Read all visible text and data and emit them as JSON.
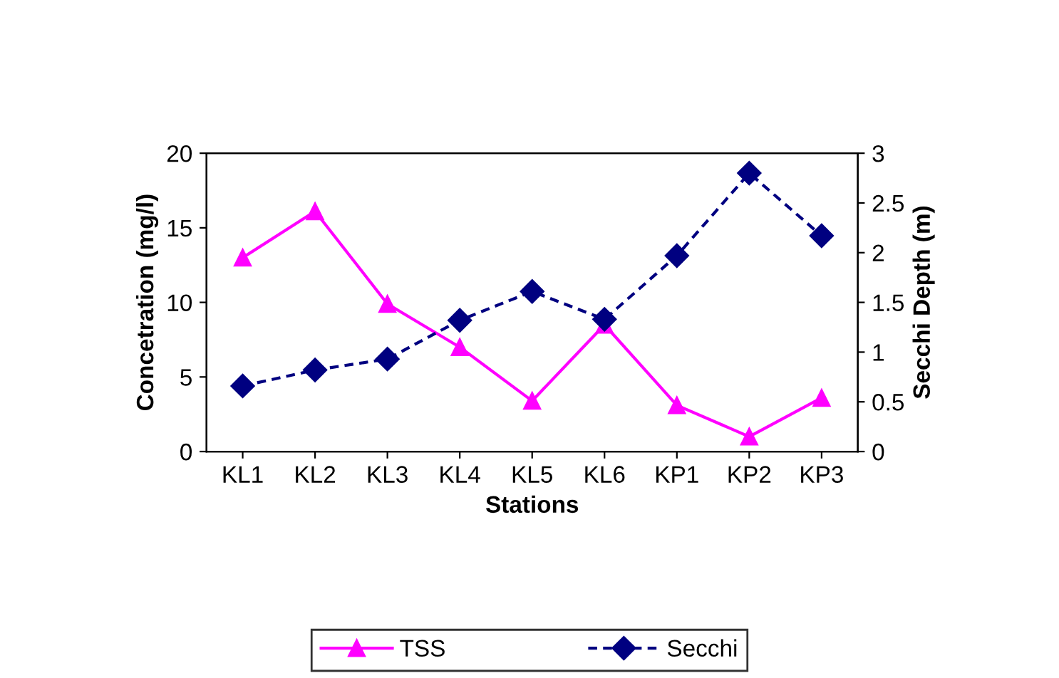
{
  "chart_data": {
    "type": "line",
    "xlabel": "Stations",
    "ylabel": "Concetration (mg/l)",
    "y2label": "Secchi Depth (m)",
    "categories": [
      "KL1",
      "KL2",
      "KL3",
      "KL4",
      "KL5",
      "KL6",
      "KP1",
      "KP2",
      "KP3"
    ],
    "series": [
      {
        "name": "TSS",
        "color": "#ff00ff",
        "marker": "triangle",
        "line_style": "solid",
        "values": [
          13.0,
          16.1,
          9.9,
          7.0,
          3.4,
          8.5,
          3.1,
          1.0,
          3.6
        ]
      },
      {
        "name": "Secchi",
        "color": "#000080",
        "marker": "diamond",
        "line_style": "dashed",
        "axis": "y2",
        "values": [
          0.66,
          0.82,
          0.93,
          1.32,
          1.61,
          1.33,
          1.97,
          2.8,
          2.17
        ]
      }
    ],
    "ylim": [
      0,
      20
    ],
    "yticks": [
      0,
      5,
      10,
      15,
      20
    ],
    "y2lim": [
      0,
      3
    ],
    "y2ticks": [
      0,
      0.5,
      1,
      1.5,
      2,
      2.5,
      3
    ],
    "grid": false,
    "legend": "bottom"
  }
}
